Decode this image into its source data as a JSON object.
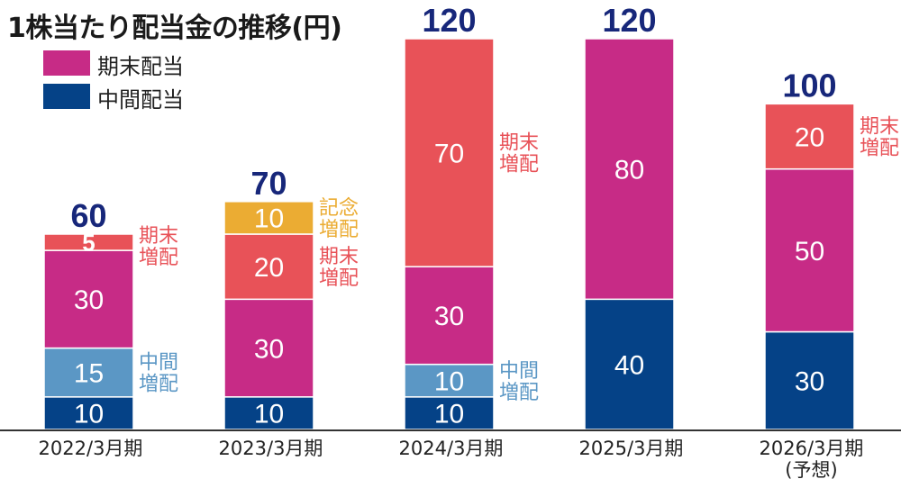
{
  "chart_data": {
    "type": "bar",
    "stacked": true,
    "title": "1株当たり配当金の推移(円)",
    "xlabel": "",
    "ylabel": "",
    "ylim": [
      0,
      120
    ],
    "grid": false,
    "legend": {
      "placement": "top-left",
      "entries": [
        {
          "name": "期末配当",
          "color": "#c72b86"
        },
        {
          "name": "中間配当",
          "color": "#054287"
        }
      ]
    },
    "categories": [
      [
        "2022/3月期"
      ],
      [
        "2023/3月期"
      ],
      [
        "2024/3月期"
      ],
      [
        "2025/3月期"
      ],
      [
        "2026/3月期",
        "(予想)"
      ]
    ],
    "totals": [
      60,
      70,
      120,
      120,
      100
    ],
    "total_color": "#17277a",
    "bars": [
      [
        {
          "series": "中間配当",
          "value": 10,
          "color": "#054287"
        },
        {
          "series": "中間増配",
          "value": 15,
          "color": "#5b97c5",
          "note": [
            "中間",
            "増配"
          ]
        },
        {
          "series": "期末配当",
          "value": 30,
          "color": "#c72b86"
        },
        {
          "series": "期末増配",
          "value": 5,
          "color": "#e85258",
          "note": [
            "期末",
            "増配"
          ]
        }
      ],
      [
        {
          "series": "中間配当",
          "value": 10,
          "color": "#054287"
        },
        {
          "series": "期末配当",
          "value": 30,
          "color": "#c72b86"
        },
        {
          "series": "期末増配",
          "value": 20,
          "color": "#e85258",
          "note": [
            "期末",
            "増配"
          ]
        },
        {
          "series": "記念増配",
          "value": 10,
          "color": "#ebac33",
          "note": [
            "記念",
            "増配"
          ]
        }
      ],
      [
        {
          "series": "中間配当",
          "value": 10,
          "color": "#054287"
        },
        {
          "series": "中間増配",
          "value": 10,
          "color": "#5b97c5",
          "note": [
            "中間",
            "増配"
          ]
        },
        {
          "series": "期末配当",
          "value": 30,
          "color": "#c72b86"
        },
        {
          "series": "期末増配",
          "value": 70,
          "color": "#e85258",
          "note": [
            "期末",
            "増配"
          ]
        }
      ],
      [
        {
          "series": "中間配当",
          "value": 40,
          "color": "#054287"
        },
        {
          "series": "期末配当",
          "value": 80,
          "color": "#c72b86"
        }
      ],
      [
        {
          "series": "中間配当",
          "value": 30,
          "color": "#054287"
        },
        {
          "series": "期末配当",
          "value": 50,
          "color": "#c72b86"
        },
        {
          "series": "期末増配",
          "value": 20,
          "color": "#e85258",
          "note": [
            "期末",
            "増配"
          ]
        }
      ]
    ]
  }
}
